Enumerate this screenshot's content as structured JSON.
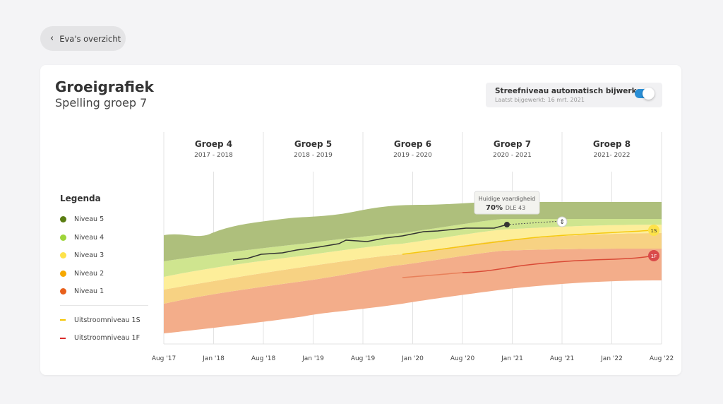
{
  "back_button": {
    "label": "Eva's overzicht",
    "icon": "chevron-left-icon"
  },
  "header": {
    "title": "Groeigrafiek",
    "subtitle": "Spelling groep 7"
  },
  "auto_update": {
    "label": "Streefniveau automatisch bijwerken",
    "last_updated": "Laatst bijgewerkt: 16 mrt. 2021",
    "enabled": true,
    "color": "#2a8fd6"
  },
  "legend": {
    "title": "Legenda",
    "items": [
      {
        "label": "Niveau 5",
        "color": "#5a7d12"
      },
      {
        "label": "Niveau 4",
        "color": "#9ed53a"
      },
      {
        "label": "Niveau 3",
        "color": "#fde24a"
      },
      {
        "label": "Niveau 2",
        "color": "#f6a800"
      },
      {
        "label": "Niveau 1",
        "color": "#e8601c"
      }
    ],
    "lines": [
      {
        "label": "Uitstroomniveau 1S",
        "color": "#f5c400"
      },
      {
        "label": "Uitstroomniveau 1F",
        "color": "#d92b2b"
      }
    ]
  },
  "groups": [
    {
      "name": "Groep 4",
      "years": "2017 - 2018"
    },
    {
      "name": "Groep 5",
      "years": "2018 - 2019"
    },
    {
      "name": "Groep 6",
      "years": "2019 - 2020"
    },
    {
      "name": "Groep 7",
      "years": "2020 - 2021"
    },
    {
      "name": "Groep 8",
      "years": "2021- 2022"
    }
  ],
  "x_ticks": [
    "Aug '17",
    "Jan '18",
    "Aug '18",
    "Jan '19",
    "Aug '19",
    "Jan '20",
    "Aug '20",
    "Jan '21",
    "Aug '21",
    "Jan '22",
    "Aug '22"
  ],
  "tooltip": {
    "label": "Huidige vaardigheid",
    "percent": "70%",
    "dle": "DLE 43"
  },
  "markers": {
    "s": "1S",
    "f": "1F"
  }
}
